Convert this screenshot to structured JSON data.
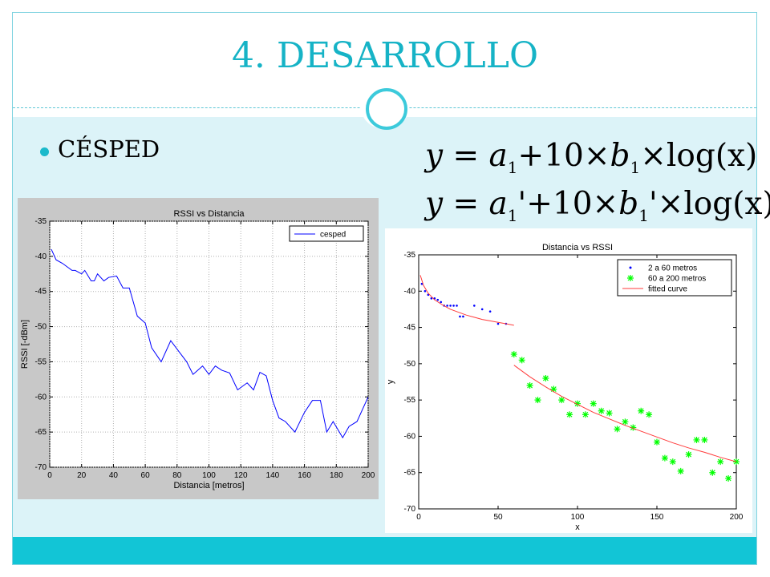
{
  "slide": {
    "title": "4. DESARROLLO",
    "bullet": "CÉSPED",
    "equation1": {
      "y": "y",
      "eq": " = ",
      "a": "a",
      "sub_a": "1",
      "mid": "+10×",
      "b": "b",
      "sub_b": "1",
      "end": "×log(x)"
    },
    "equation2": {
      "y": "y",
      "eq": " = ",
      "a": "a",
      "sub_a": "1",
      "mid": "'+10×",
      "b": "b",
      "sub_b": "1",
      "end": "'×log(x)"
    },
    "colors": {
      "accent": "#16b3c6",
      "footer": "#12c5d6",
      "panel": "#dcf3f8"
    }
  },
  "chart_data": [
    {
      "type": "line",
      "title": "RSSI vs Distancia",
      "xlabel": "Distancia [metros]",
      "ylabel": "RSSI [-dBm]",
      "xlim": [
        0,
        200
      ],
      "ylim": [
        -70,
        -35
      ],
      "xticks": [
        0,
        20,
        40,
        60,
        80,
        100,
        120,
        140,
        160,
        180,
        200
      ],
      "yticks": [
        -35,
        -40,
        -45,
        -50,
        -55,
        -60,
        -65,
        -70
      ],
      "legend": {
        "position": "top-right",
        "entries": [
          "cesped"
        ]
      },
      "series": [
        {
          "name": "cesped",
          "color": "#0000ff",
          "x": [
            1,
            4,
            8,
            14,
            16,
            20,
            22,
            26,
            28,
            30,
            34,
            37,
            42,
            46,
            50,
            55,
            60,
            64,
            70,
            76,
            80,
            86,
            90,
            96,
            100,
            104,
            108,
            113,
            118,
            124,
            128,
            132,
            136,
            140,
            144,
            148,
            154,
            160,
            165,
            170,
            174,
            178,
            184,
            188,
            193,
            200
          ],
          "y": [
            -39,
            -40.5,
            -41,
            -42,
            -42,
            -42.5,
            -42,
            -43.5,
            -43.5,
            -42.5,
            -43.5,
            -43,
            -42.8,
            -44.5,
            -44.5,
            -48.5,
            -49.5,
            -53,
            -55,
            -52,
            -53.2,
            -55,
            -56.8,
            -55.6,
            -56.8,
            -55.6,
            -56.2,
            -56.6,
            -59,
            -58,
            -59,
            -56.5,
            -57,
            -60.5,
            -63,
            -63.5,
            -65,
            -62.2,
            -60.5,
            -60.5,
            -65,
            -63.5,
            -65.8,
            -64.2,
            -63.5,
            -60
          ]
        }
      ]
    },
    {
      "type": "scatter",
      "title": "Distancia vs RSSI",
      "xlabel": "x",
      "ylabel": "y",
      "xlim": [
        0,
        200
      ],
      "ylim": [
        -70,
        -35
      ],
      "xticks": [
        0,
        50,
        100,
        150,
        200
      ],
      "yticks": [
        -35,
        -40,
        -45,
        -50,
        -55,
        -60,
        -65,
        -70
      ],
      "legend": {
        "position": "top-right",
        "entries": [
          "2 a 60 metros",
          "60 a 200 metros",
          "fitted curve"
        ]
      },
      "series": [
        {
          "name": "2 a 60 metros",
          "color": "#0000ff",
          "marker": "dot",
          "x": [
            2,
            4,
            6,
            8,
            10,
            12,
            14,
            16,
            18,
            20,
            22,
            24,
            26,
            28,
            35,
            40,
            45,
            50,
            55
          ],
          "y": [
            -39,
            -40,
            -40.5,
            -41,
            -41,
            -41.2,
            -41.5,
            -42,
            -42,
            -42,
            -42,
            -42,
            -43.5,
            -43.5,
            -42,
            -42.5,
            -42.8,
            -44.5,
            -44.5
          ]
        },
        {
          "name": "60 a 200 metros",
          "color": "#00ff00",
          "marker": "star",
          "x": [
            60,
            65,
            70,
            75,
            80,
            85,
            90,
            95,
            100,
            105,
            110,
            115,
            120,
            125,
            130,
            135,
            140,
            145,
            150,
            155,
            160,
            165,
            170,
            175,
            180,
            185,
            190,
            195,
            200
          ],
          "y": [
            -48.7,
            -49.5,
            -53,
            -55,
            -52,
            -53.5,
            -55,
            -57,
            -55.5,
            -57,
            -55.5,
            -56.5,
            -56.8,
            -59,
            -58,
            -58.8,
            -56.5,
            -57,
            -60.8,
            -63,
            -63.5,
            -64.8,
            -62.5,
            -60.5,
            -60.5,
            -65,
            -63.5,
            -65.8,
            -63.5
          ]
        },
        {
          "name": "fitted curve",
          "color": "#ff3b3b",
          "marker": "line",
          "segments": [
            {
              "x": [
                1,
                3,
                6,
                10,
                15,
                20,
                25,
                30,
                35,
                40,
                45,
                50,
                55,
                60
              ],
              "y": [
                -37.8,
                -39.2,
                -40.3,
                -41.2,
                -41.9,
                -42.5,
                -42.9,
                -43.3,
                -43.6,
                -43.9,
                -44.1,
                -44.3,
                -44.5,
                -44.7
              ]
            },
            {
              "x": [
                60,
                70,
                80,
                90,
                100,
                110,
                120,
                130,
                140,
                150,
                160,
                170,
                180,
                190,
                200
              ],
              "y": [
                -50.2,
                -51.8,
                -53.2,
                -54.5,
                -55.6,
                -56.7,
                -57.6,
                -58.5,
                -59.3,
                -60.1,
                -60.9,
                -61.6,
                -62.2,
                -62.9,
                -63.5
              ]
            }
          ]
        }
      ]
    }
  ]
}
